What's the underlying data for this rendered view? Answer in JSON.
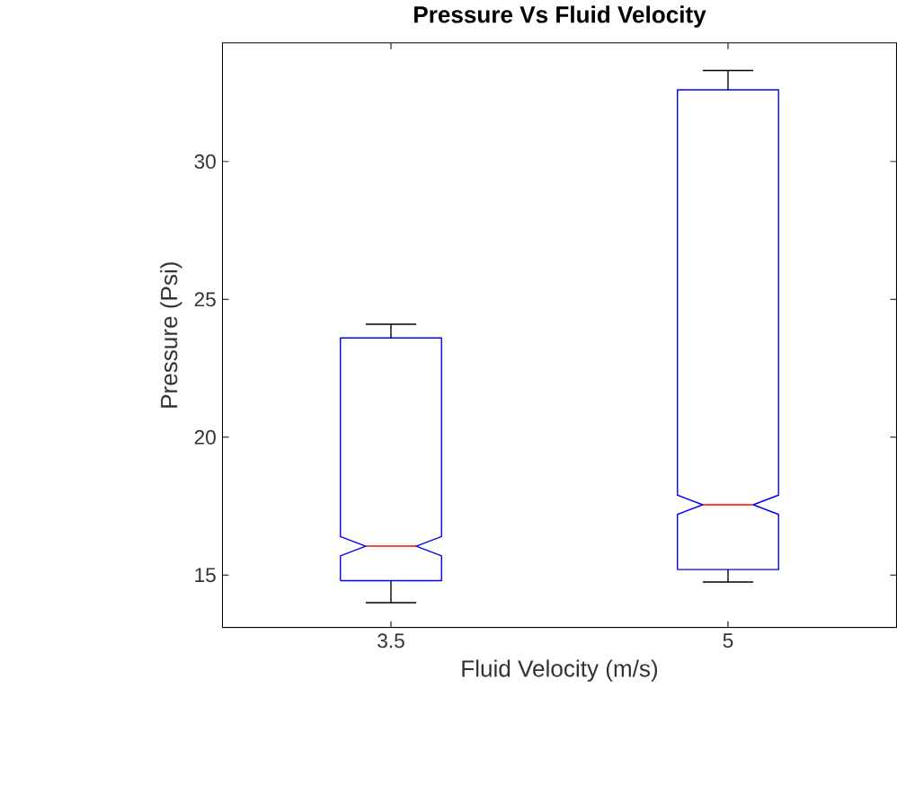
{
  "chart_data": {
    "type": "box",
    "title": "Pressure Vs Fluid Velocity",
    "xlabel": "Fluid Velocity (m/s)",
    "ylabel": "Pressure (Psi)",
    "categories": [
      "3.5",
      "5"
    ],
    "boxes": [
      {
        "low": 14.0,
        "q1": 14.8,
        "median": 16.05,
        "q3": 23.6,
        "high": 24.1
      },
      {
        "low": 14.75,
        "q1": 15.2,
        "median": 17.55,
        "q3": 32.6,
        "high": 33.3
      }
    ],
    "color": "#0000ff",
    "ylim": [
      13.1,
      34.3
    ],
    "yticks": [
      15,
      20,
      25,
      30
    ],
    "grid": false
  }
}
